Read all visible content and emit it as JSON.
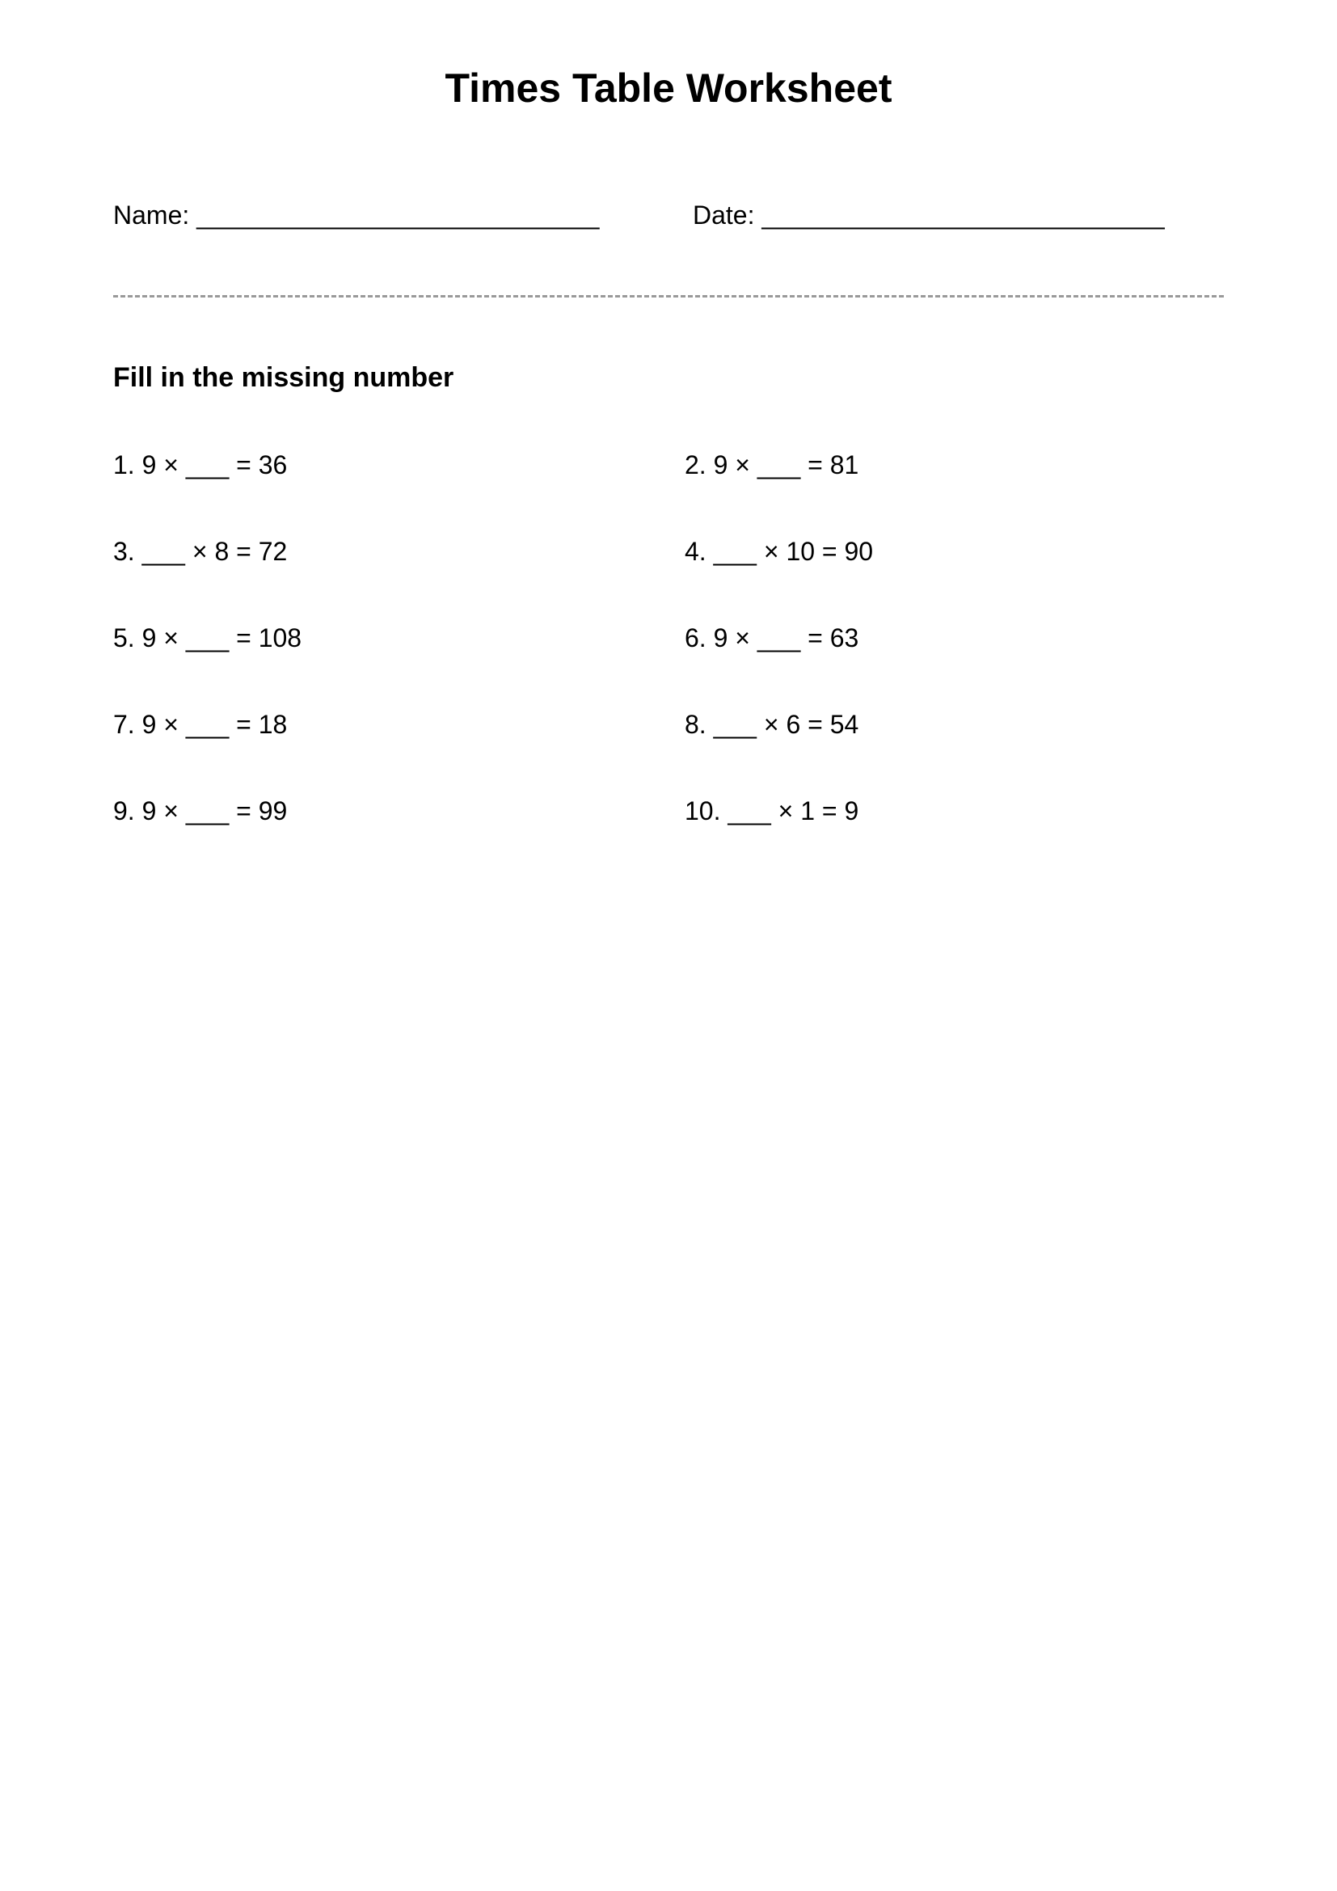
{
  "title": "Times Table Worksheet",
  "header": {
    "name_label": "Name: ____________________________",
    "date_label": "Date: ____________________________"
  },
  "instruction": "Fill in the missing number",
  "problems": [
    {
      "num": "1.",
      "text": "9 × ___ = 36"
    },
    {
      "num": "2.",
      "text": "9 × ___ = 81"
    },
    {
      "num": "3.",
      "text": "___ × 8 = 72"
    },
    {
      "num": "4.",
      "text": "___ × 10 = 90"
    },
    {
      "num": "5.",
      "text": "9 × ___ = 108"
    },
    {
      "num": "6.",
      "text": "9 × ___ = 63"
    },
    {
      "num": "7.",
      "text": "9 × ___ = 18"
    },
    {
      "num": "8.",
      "text": "___ × 6 = 54"
    },
    {
      "num": "9.",
      "text": "9 × ___ = 99"
    },
    {
      "num": "10.",
      "text": "___ × 1 = 9"
    }
  ],
  "colors": {
    "background": "#ffffff",
    "text": "#000000",
    "divider": "#999999"
  },
  "typography": {
    "title_fontsize": 50,
    "body_fontsize": 32,
    "instruction_fontsize": 34,
    "font_family": "Arial"
  }
}
